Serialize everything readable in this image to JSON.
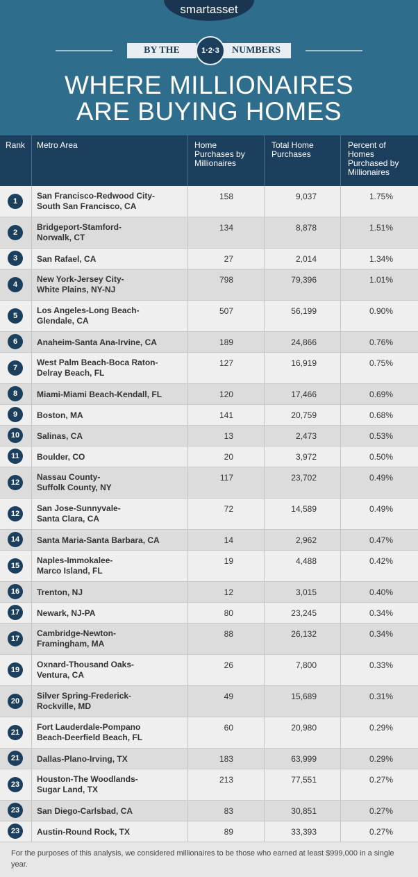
{
  "header": {
    "logo": "smartasset",
    "banner_left": "BY THE",
    "banner_mid": "1·2·3",
    "banner_right": "NUMBERS",
    "title_lines": [
      "WHERE MILLIONAIRES",
      "ARE BUYING HOMES"
    ]
  },
  "table": {
    "columns": [
      "Rank",
      "Metro Area",
      "Home Purchases by Millionaires",
      "Total Home Purchases",
      "Percent of Homes Purchased by Millionaires"
    ],
    "rows": [
      {
        "rank": "1",
        "metro": [
          "San Francisco-Redwood City-",
          "South San Francisco, CA"
        ],
        "millionaire": "158",
        "total": "9,037",
        "percent": "1.75%"
      },
      {
        "rank": "2",
        "metro": [
          "Bridgeport-Stamford-",
          "Norwalk, CT"
        ],
        "millionaire": "134",
        "total": "8,878",
        "percent": "1.51%"
      },
      {
        "rank": "3",
        "metro": [
          "San Rafael, CA"
        ],
        "millionaire": "27",
        "total": "2,014",
        "percent": "1.34%"
      },
      {
        "rank": "4",
        "metro": [
          "New York-Jersey City-",
          "White Plains, NY-NJ"
        ],
        "millionaire": "798",
        "total": "79,396",
        "percent": "1.01%"
      },
      {
        "rank": "5",
        "metro": [
          "Los Angeles-Long Beach-",
          "Glendale, CA"
        ],
        "millionaire": "507",
        "total": "56,199",
        "percent": "0.90%"
      },
      {
        "rank": "6",
        "metro": [
          "Anaheim-Santa Ana-Irvine, CA"
        ],
        "millionaire": "189",
        "total": "24,866",
        "percent": "0.76%"
      },
      {
        "rank": "7",
        "metro": [
          "West Palm Beach-Boca Raton-",
          "Delray Beach, FL"
        ],
        "millionaire": "127",
        "total": "16,919",
        "percent": "0.75%"
      },
      {
        "rank": "8",
        "metro": [
          "Miami-Miami Beach-Kendall, FL"
        ],
        "millionaire": "120",
        "total": "17,466",
        "percent": "0.69%"
      },
      {
        "rank": "9",
        "metro": [
          "Boston, MA"
        ],
        "millionaire": "141",
        "total": "20,759",
        "percent": "0.68%"
      },
      {
        "rank": "10",
        "metro": [
          "Salinas, CA"
        ],
        "millionaire": "13",
        "total": "2,473",
        "percent": "0.53%"
      },
      {
        "rank": "11",
        "metro": [
          "Boulder, CO"
        ],
        "millionaire": "20",
        "total": "3,972",
        "percent": "0.50%"
      },
      {
        "rank": "12",
        "metro": [
          "Nassau County-",
          "Suffolk County, NY"
        ],
        "millionaire": "117",
        "total": "23,702",
        "percent": "0.49%"
      },
      {
        "rank": "12",
        "metro": [
          "San Jose-Sunnyvale-",
          "Santa Clara, CA"
        ],
        "millionaire": "72",
        "total": "14,589",
        "percent": "0.49%"
      },
      {
        "rank": "14",
        "metro": [
          "Santa Maria-Santa Barbara, CA"
        ],
        "millionaire": "14",
        "total": "2,962",
        "percent": "0.47%"
      },
      {
        "rank": "15",
        "metro": [
          "Naples-Immokalee-",
          "Marco Island, FL"
        ],
        "millionaire": "19",
        "total": "4,488",
        "percent": "0.42%"
      },
      {
        "rank": "16",
        "metro": [
          "Trenton, NJ"
        ],
        "millionaire": "12",
        "total": "3,015",
        "percent": "0.40%"
      },
      {
        "rank": "17",
        "metro": [
          "Newark, NJ-PA"
        ],
        "millionaire": "80",
        "total": "23,245",
        "percent": "0.34%"
      },
      {
        "rank": "17",
        "metro": [
          "Cambridge-Newton-",
          "Framingham, MA"
        ],
        "millionaire": "88",
        "total": "26,132",
        "percent": "0.34%"
      },
      {
        "rank": "19",
        "metro": [
          "Oxnard-Thousand Oaks-",
          "Ventura, CA"
        ],
        "millionaire": "26",
        "total": "7,800",
        "percent": "0.33%"
      },
      {
        "rank": "20",
        "metro": [
          "Silver Spring-Frederick-",
          "Rockville, MD"
        ],
        "millionaire": "49",
        "total": "15,689",
        "percent": "0.31%"
      },
      {
        "rank": "21",
        "metro": [
          "Fort Lauderdale-Pompano",
          "Beach-Deerfield Beach, FL"
        ],
        "millionaire": "60",
        "total": "20,980",
        "percent": "0.29%"
      },
      {
        "rank": "21",
        "metro": [
          "Dallas-Plano-Irving, TX"
        ],
        "millionaire": "183",
        "total": "63,999",
        "percent": "0.29%"
      },
      {
        "rank": "23",
        "metro": [
          "Houston-The Woodlands-",
          "Sugar Land, TX"
        ],
        "millionaire": "213",
        "total": "77,551",
        "percent": "0.27%"
      },
      {
        "rank": "23",
        "metro": [
          "San Diego-Carlsbad, CA"
        ],
        "millionaire": "83",
        "total": "30,851",
        "percent": "0.27%"
      },
      {
        "rank": "23",
        "metro": [
          "Austin-Round Rock, TX"
        ],
        "millionaire": "89",
        "total": "33,393",
        "percent": "0.27%"
      }
    ]
  },
  "footer": {
    "note": "For the purposes of this analysis, we considered millionaires to be those who earned at least $999,000 in a single year."
  }
}
